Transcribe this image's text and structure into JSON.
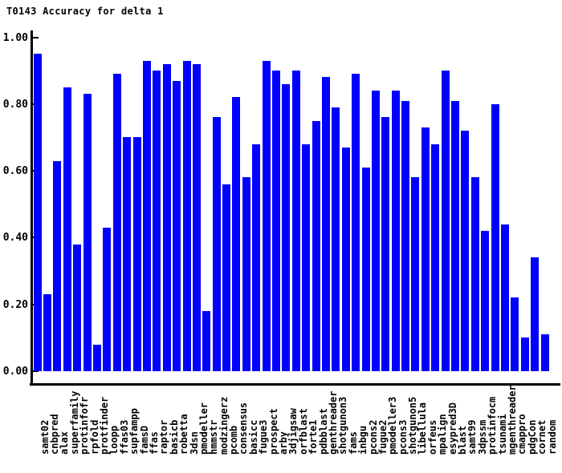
{
  "title": "T0143 Accuracy for delta 1",
  "colors": {
    "background": "#ffffff",
    "bar": "#0000ff",
    "axis": "#000000",
    "text": "#000000"
  },
  "y_axis": {
    "tick_labels": [
      "1.00",
      "0.80",
      "0.60",
      "0.40",
      "0.20",
      "0.00"
    ],
    "tick_values": [
      1.0,
      0.8,
      0.6,
      0.4,
      0.2,
      0.0
    ]
  },
  "chart_data": {
    "type": "bar",
    "title": "T0143 Accuracy for delta 1",
    "xlabel": "",
    "ylabel": "",
    "ylim": [
      0,
      1
    ],
    "yticks": [
      0.0,
      0.2,
      0.4,
      0.6,
      0.8,
      1.0
    ],
    "grid": false,
    "legend": null,
    "bar_color": "#0000ff",
    "categories": [
      "samt02",
      "cnbpred",
      "alax",
      "superfamily",
      "protinfofr",
      "rpfold",
      "protfinder",
      "loopp",
      "ffas03",
      "supfampp",
      "famsD",
      "ffas",
      "raptor",
      "basicb",
      "robetta",
      "3dsn",
      "pmodeller",
      "hmmstr",
      "modzingerz",
      "pcomb",
      "consensus",
      "basicc",
      "fugue3",
      "prospect",
      "arby",
      "3djigsaw",
      "orfblast",
      "forte1",
      "pdbblast",
      "genthreader",
      "shotgunon3",
      "fams",
      "inbgu",
      "pcons2",
      "fugue2",
      "pmodeller3",
      "pcons3",
      "shotgunon5",
      "libellula",
      "orfeus",
      "mpalign",
      "esypred3D",
      "blast",
      "samt99",
      "3dpssm",
      "protinfocm",
      "tsunami",
      "mgenthreader",
      "cmappro",
      "pdgCon",
      "cornet",
      "random"
    ],
    "values": [
      0.95,
      0.23,
      0.63,
      0.85,
      0.38,
      0.83,
      0.08,
      0.43,
      0.89,
      0.7,
      0.7,
      0.93,
      0.9,
      0.92,
      0.87,
      0.93,
      0.92,
      0.18,
      0.76,
      0.56,
      0.82,
      0.58,
      0.68,
      0.93,
      0.9,
      0.86,
      0.9,
      0.68,
      0.75,
      0.88,
      0.79,
      0.67,
      0.89,
      0.61,
      0.84,
      0.76,
      0.84,
      0.81,
      0.58,
      0.73,
      0.68,
      0.9,
      0.81,
      0.72,
      0.58,
      0.42,
      0.8,
      0.44,
      0.22,
      0.1,
      0.34,
      0.11
    ]
  }
}
